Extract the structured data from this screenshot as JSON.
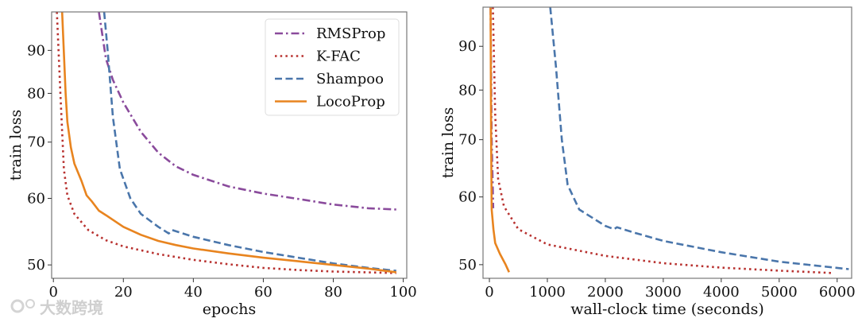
{
  "colors": {
    "RMSProp": "#8a4b9c",
    "K-FAC": "#b8312f",
    "Shampoo": "#4a76ab",
    "LocoProp": "#e8841f"
  },
  "watermark": "大数跨境",
  "chart_data": [
    {
      "type": "line",
      "xlabel": "epochs",
      "ylabel": "train loss",
      "yscale": "log",
      "xlim": [
        -0.5,
        101
      ],
      "ylim": [
        48.2,
        100
      ],
      "xticks": [
        0,
        20,
        40,
        60,
        80,
        100
      ],
      "yticks": [
        50,
        60,
        70,
        80,
        90
      ],
      "legend": {
        "placement": "top-right",
        "entries": [
          "RMSProp",
          "K-FAC",
          "Shampoo",
          "LocoProp"
        ]
      },
      "series": [
        {
          "name": "RMSProp",
          "style": "dashdot",
          "x": [
            13,
            15,
            17,
            20,
            25,
            30,
            35,
            40,
            50,
            60,
            70,
            80,
            90,
            98
          ],
          "y": [
            100,
            88,
            83,
            78,
            72,
            68,
            65.5,
            64,
            62,
            60.8,
            59.9,
            59,
            58.4,
            58.2
          ]
        },
        {
          "name": "K-FAC",
          "style": "dotted",
          "x": [
            1,
            2,
            3,
            4,
            6,
            10,
            15,
            20,
            30,
            40,
            50,
            60,
            70,
            80,
            98
          ],
          "y": [
            100,
            80,
            65,
            60.5,
            57.5,
            55,
            53.5,
            52.6,
            51.5,
            50.7,
            50.1,
            49.6,
            49.3,
            49.1,
            48.9
          ]
        },
        {
          "name": "Shampoo",
          "style": "dashed",
          "x": [
            14.5,
            15.5,
            17,
            19,
            22,
            25,
            30,
            33,
            34,
            40,
            50,
            60,
            70,
            80,
            90,
            98
          ],
          "y": [
            100,
            90,
            75,
            65,
            60,
            57.5,
            55.5,
            54.5,
            55,
            54,
            52.8,
            51.8,
            51,
            50.2,
            49.6,
            49.2
          ]
        },
        {
          "name": "LocoProp",
          "style": "solid",
          "x": [
            2.5,
            3.5,
            4,
            5,
            6,
            8,
            9.5,
            11,
            13,
            15,
            20,
            25,
            30,
            35,
            40,
            50,
            60,
            70,
            80,
            90,
            98
          ],
          "y": [
            100,
            80,
            74,
            69,
            66,
            63,
            60.5,
            59.5,
            58,
            57.3,
            55.5,
            54.3,
            53.4,
            52.8,
            52.3,
            51.6,
            51,
            50.5,
            50,
            49.5,
            49
          ]
        }
      ]
    },
    {
      "type": "line",
      "xlabel": "wall-clock time (seconds)",
      "ylabel": "train loss",
      "yscale": "log",
      "xlim": [
        -110,
        6250
      ],
      "ylim": [
        48.2,
        100
      ],
      "xticks": [
        0,
        1000,
        2000,
        3000,
        4000,
        5000,
        6000
      ],
      "yticks": [
        50,
        60,
        70,
        80,
        90
      ],
      "series": [
        {
          "name": "RMSProp",
          "style": "dashdot",
          "x": [
            20,
            40,
            65
          ],
          "y": [
            100,
            70,
            58.2
          ]
        },
        {
          "name": "K-FAC",
          "style": "dotted",
          "x": [
            60,
            100,
            150,
            250,
            500,
            1000,
            2000,
            3000,
            4000,
            5000,
            5900
          ],
          "y": [
            100,
            75,
            63,
            58.5,
            55,
            52.8,
            51.2,
            50.2,
            49.6,
            49.2,
            48.9
          ]
        },
        {
          "name": "Shampoo",
          "style": "dashed",
          "x": [
            1050,
            1150,
            1250,
            1350,
            1550,
            2000,
            2150,
            2200,
            2500,
            3000,
            4000,
            5000,
            6200
          ],
          "y": [
            100,
            85,
            70,
            62,
            58,
            55.5,
            55,
            55.3,
            54.5,
            53.3,
            51.7,
            50.4,
            49.4
          ]
        },
        {
          "name": "LocoProp",
          "style": "solid",
          "x": [
            20,
            30,
            40,
            70,
            100,
            180,
            280,
            340
          ],
          "y": [
            100,
            70,
            58,
            55,
            53,
            51.5,
            50,
            49
          ]
        }
      ]
    }
  ]
}
